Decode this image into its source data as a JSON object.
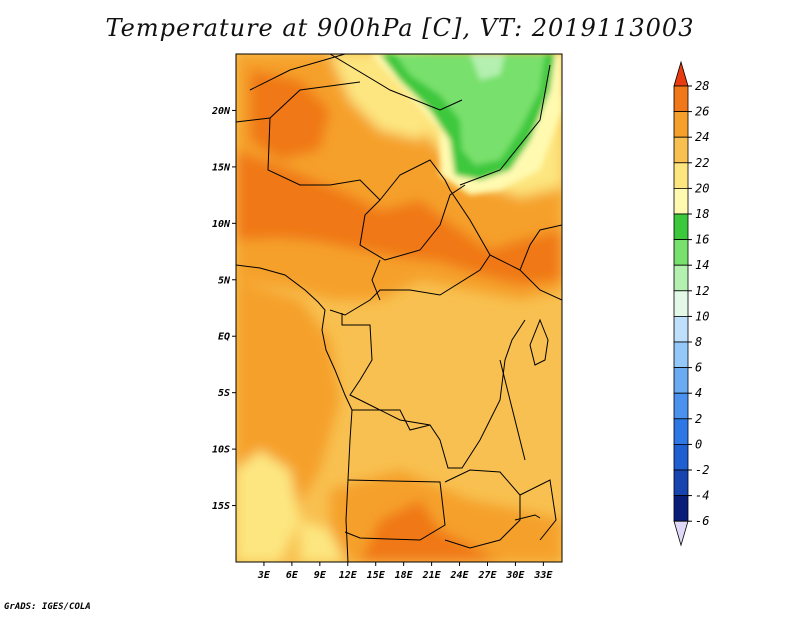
{
  "title": "Temperature at 900hPa [C], VT: 2019113003",
  "credit": "GrADS: IGES/COLA",
  "map": {
    "lon_range": [
      0,
      35
    ],
    "lat_range": [
      -20,
      25
    ],
    "lat_ticks": [
      "20N",
      "15N",
      "10N",
      "5N",
      "EQ",
      "5S",
      "10S",
      "15S"
    ],
    "lon_ticks": [
      "3E",
      "6E",
      "9E",
      "12E",
      "15E",
      "18E",
      "21E",
      "24E",
      "27E",
      "30E",
      "33E"
    ]
  },
  "colorbar": {
    "labels": [
      "28",
      "26",
      "24",
      "22",
      "20",
      "18",
      "16",
      "14",
      "12",
      "10",
      "8",
      "6",
      "4",
      "2",
      "0",
      "-2",
      "-4",
      "-6"
    ],
    "colors": {
      "lt_-6": "#e0d8f8",
      "-6_-4": "#0a1e78",
      "-4_-2": "#1844b0",
      "-2_0": "#1e5fd2",
      "0_2": "#2e78e6",
      "2_4": "#4a92ee",
      "4_6": "#6aacf2",
      "6_8": "#94c8f8",
      "8_10": "#bee0fc",
      "10_12": "#e4f8e8",
      "12_14": "#b4f0b0",
      "14_16": "#78e06c",
      "16_18": "#3cc83c",
      "18_20": "#fffab0",
      "20_22": "#fde680",
      "22_24": "#f8c050",
      "24_26": "#f5a02a",
      "26_28": "#f07818",
      "gt_28": "#e83c10"
    }
  }
}
